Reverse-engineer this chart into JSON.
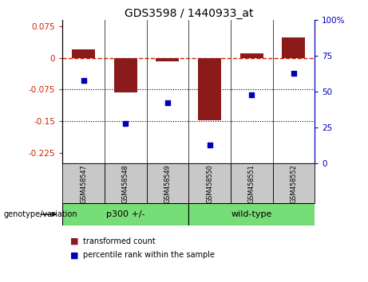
{
  "title": "GDS3598 / 1440933_at",
  "samples": [
    "GSM458547",
    "GSM458548",
    "GSM458549",
    "GSM458550",
    "GSM458551",
    "GSM458552"
  ],
  "red_bars": [
    0.02,
    -0.082,
    -0.008,
    -0.148,
    0.01,
    0.048
  ],
  "blue_pct": [
    58,
    28,
    42,
    13,
    48,
    63
  ],
  "ylim_left": [
    -0.25,
    0.09
  ],
  "ylim_right": [
    0,
    100
  ],
  "yticks_left": [
    0.075,
    0,
    -0.075,
    -0.15,
    -0.225
  ],
  "yticks_left_labels": [
    "0.075",
    "0",
    "-0.075",
    "-0.15",
    "-0.225"
  ],
  "yticks_right": [
    100,
    75,
    50,
    25,
    0
  ],
  "yticks_right_labels": [
    "100%",
    "75",
    "50",
    "25",
    "0"
  ],
  "bar_color": "#8b1a1a",
  "dot_color": "#0000bb",
  "left_axis_color": "#cc2200",
  "right_axis_color": "#0000bb",
  "hline_color": "#cc2200",
  "legend_red_label": "transformed count",
  "legend_blue_label": "percentile rank within the sample",
  "genotype_label": "genotype/variation",
  "group1_label": "p300 +/-",
  "group2_label": "wild-type",
  "group_color": "#77dd77",
  "sample_box_color": "#c8c8c8",
  "bar_width": 0.55
}
